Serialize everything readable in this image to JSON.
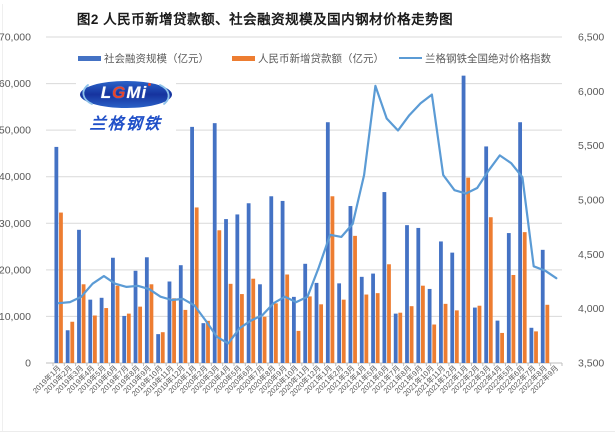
{
  "title": "图2 人民币新增贷款额、社会融资规模及国内钢材价格走势图",
  "legend": [
    {
      "label": "社会融资规模（亿元）",
      "type": "bar",
      "color": "#4472C4"
    },
    {
      "label": "人民币新增贷款额（亿元）",
      "type": "bar",
      "color": "#ED7D31"
    },
    {
      "label": "兰格钢铁全国绝对价格指数",
      "type": "line",
      "color": "#5B9BD5"
    }
  ],
  "logo": {
    "badge_letters": [
      {
        "ch": "L",
        "color": "#ffffff"
      },
      {
        "ch": "G",
        "color": "#e8442a"
      },
      {
        "ch": "M",
        "color": "#ffffff"
      },
      {
        "ch": "i",
        "color": "#ffffff"
      }
    ],
    "name_text": "兰格钢铁",
    "badge_fill": "#16339e",
    "badge_edge": "#8fc3ea"
  },
  "colors": {
    "grid": "#D9D9D9",
    "axis_line": "#BFBFBF",
    "axis_text": "#595959",
    "background": "#ffffff"
  },
  "chart_data": {
    "type": "combo",
    "title": "图2 人民币新增贷款额、社会融资规模及国内钢材价格走势图",
    "grid": true,
    "legend_position": "top",
    "categories": [
      "2019年1月",
      "2019年2月",
      "2019年3月",
      "2019年4月",
      "2019年5月",
      "2019年6月",
      "2019年7月",
      "2019年8月",
      "2019年9月",
      "2019年10月",
      "2019年11月",
      "2019年12月",
      "2020年1月",
      "2020年2月",
      "2020年3月",
      "2020年4月",
      "2020年5月",
      "2020年6月",
      "2020年7月",
      "2020年8月",
      "2020年9月",
      "2020年10月",
      "2020年11月",
      "2020年12月",
      "2021年1月",
      "2021年2月",
      "2021年3月",
      "2021年4月",
      "2021年5月",
      "2021年6月",
      "2021年7月",
      "2021年8月",
      "2021年9月",
      "2021年10月",
      "2021年11月",
      "2021年12月",
      "2022年1月",
      "2022年2月",
      "2022年3月",
      "2022年4月",
      "2022年5月",
      "2022年6月",
      "2022年7月",
      "2022年8月",
      "2022年9月"
    ],
    "left_axis": {
      "min": 0,
      "max": 70000,
      "step": 10000,
      "tick_labels": [
        "0",
        "10,000",
        "20,000",
        "30,000",
        "40,000",
        "50,000",
        "60,000",
        "70,000"
      ]
    },
    "right_axis": {
      "min": 3500,
      "max": 6500,
      "step": 500,
      "tick_labels": [
        "3,500",
        "4,000",
        "4,500",
        "5,000",
        "5,500",
        "6,000",
        "6,500"
      ]
    },
    "series": [
      {
        "name": "社会融资规模（亿元）",
        "type": "bar",
        "axis": "left",
        "color": "#4472C4",
        "values": [
          46400,
          7030,
          28600,
          13600,
          14000,
          22600,
          10100,
          19800,
          22700,
          6200,
          17500,
          21000,
          50700,
          8554,
          51500,
          30900,
          31900,
          34300,
          16900,
          35800,
          34800,
          14200,
          21300,
          17200,
          51700,
          17100,
          33700,
          18500,
          19200,
          36700,
          10600,
          29600,
          29000,
          15900,
          26100,
          23700,
          61700,
          11900,
          46500,
          9102,
          27900,
          51700,
          7561,
          24300,
          null
        ]
      },
      {
        "name": "人民币新增贷款额（亿元）",
        "type": "bar",
        "axis": "left",
        "color": "#ED7D31",
        "values": [
          32300,
          8858,
          16900,
          10200,
          11800,
          16600,
          10600,
          12100,
          16900,
          6613,
          13900,
          11400,
          33400,
          9057,
          28500,
          17000,
          14800,
          18100,
          9927,
          12800,
          19000,
          6898,
          14300,
          12600,
          35800,
          13600,
          27300,
          14700,
          15000,
          21200,
          10800,
          12200,
          16600,
          8262,
          12700,
          11300,
          39800,
          12300,
          31300,
          6454,
          18900,
          28100,
          6790,
          12500,
          null
        ]
      },
      {
        "name": "兰格钢铁全国绝对价格指数",
        "type": "line",
        "axis": "right",
        "color": "#5B9BD5",
        "values": [
          4050,
          4060,
          4110,
          4230,
          4300,
          4230,
          4200,
          4210,
          4180,
          4110,
          4080,
          4090,
          4030,
          3890,
          3740,
          3680,
          3820,
          3890,
          3940,
          4050,
          4110,
          4060,
          4110,
          4380,
          4680,
          4660,
          4780,
          5230,
          6050,
          5750,
          5640,
          5780,
          5890,
          5970,
          5230,
          5090,
          5060,
          5110,
          5270,
          5410,
          5340,
          5210,
          4390,
          4350,
          4280
        ]
      }
    ]
  }
}
